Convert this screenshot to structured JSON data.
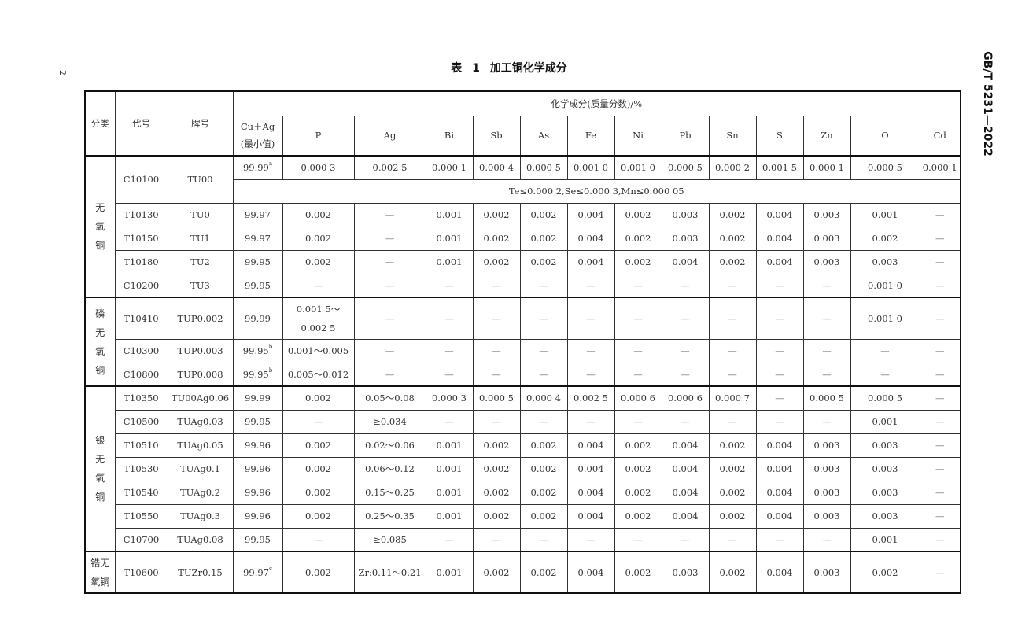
{
  "page_number": "2",
  "standard_code": "GB/T 5231—2022",
  "table_title": "表 1   加工铜化学成分",
  "header": {
    "category": "分类",
    "code": "代号",
    "grade": "牌号",
    "composition": "化学成分(质量分数)/%",
    "elements": [
      "Cu＋Ag (最小值)",
      "P",
      "Ag",
      "Bi",
      "Sb",
      "As",
      "Fe",
      "Ni",
      "Pb",
      "Sn",
      "S",
      "Zn",
      "O",
      "Cd"
    ]
  },
  "groups": [
    {
      "label": "无氧铜",
      "rows": [
        {
          "code": "C10100",
          "grade": "TU00",
          "values": [
            {
              "v": "99.99",
              "sup": "a"
            },
            "0.000 3",
            "0.002 5",
            "0.000 1",
            "0.000 4",
            "0.000 5",
            "0.001 0",
            "0.001 0",
            "0.000 5",
            "0.000 2",
            "0.001 5",
            "0.000 1",
            "0.000 5",
            "0.000 1"
          ],
          "note": "Te≤0.000 2,Se≤0.000 3,Mn≤0.000 05"
        },
        {
          "code": "T10130",
          "grade": "TU0",
          "values": [
            "99.97",
            "0.002",
            "—",
            "0.001",
            "0.002",
            "0.002",
            "0.004",
            "0.002",
            "0.003",
            "0.002",
            "0.004",
            "0.003",
            "0.001",
            "—"
          ]
        },
        {
          "code": "T10150",
          "grade": "TU1",
          "values": [
            "99.97",
            "0.002",
            "—",
            "0.001",
            "0.002",
            "0.002",
            "0.004",
            "0.002",
            "0.003",
            "0.002",
            "0.004",
            "0.003",
            "0.002",
            "—"
          ]
        },
        {
          "code": "T10180",
          "grade": "TU2",
          "values": [
            "99.95",
            "0.002",
            "—",
            "0.001",
            "0.002",
            "0.002",
            "0.004",
            "0.002",
            "0.004",
            "0.002",
            "0.004",
            "0.003",
            "0.003",
            "—"
          ]
        },
        {
          "code": "C10200",
          "grade": "TU3",
          "values": [
            "99.95",
            "—",
            "—",
            "—",
            "—",
            "—",
            "—",
            "—",
            "—",
            "—",
            "—",
            "—",
            "0.001 0",
            "—"
          ]
        }
      ]
    },
    {
      "label": "磷无氧铜",
      "rows": [
        {
          "code": "T10410",
          "grade": "TUP0.002",
          "tall": true,
          "values": [
            "99.99",
            "0.001 5～ 0.002 5",
            "—",
            "—",
            "—",
            "—",
            "—",
            "—",
            "—",
            "—",
            "—",
            "—",
            "0.001 0",
            "—"
          ]
        },
        {
          "code": "C10300",
          "grade": "TUP0.003",
          "values": [
            {
              "v": "99.95",
              "sup": "b"
            },
            "0.001～0.005",
            "—",
            "—",
            "—",
            "—",
            "—",
            "—",
            "—",
            "—",
            "—",
            "—",
            "—",
            "—"
          ]
        },
        {
          "code": "C10800",
          "grade": "TUP0.008",
          "values": [
            {
              "v": "99.95",
              "sup": "b"
            },
            "0.005～0.012",
            "—",
            "—",
            "—",
            "—",
            "—",
            "—",
            "—",
            "—",
            "—",
            "—",
            "—",
            "—"
          ]
        }
      ]
    },
    {
      "label": "银无氧铜",
      "rows": [
        {
          "code": "T10350",
          "grade": "TU00Ag0.06",
          "values": [
            "99.99",
            "0.002",
            "0.05～0.08",
            "0.000 3",
            "0.000 5",
            "0.000 4",
            "0.002 5",
            "0.000 6",
            "0.000 6",
            "0.000 7",
            "—",
            "0.000 5",
            "0.000 5",
            "—"
          ]
        },
        {
          "code": "C10500",
          "grade": "TUAg0.03",
          "values": [
            "99.95",
            "—",
            "≥0.034",
            "—",
            "—",
            "—",
            "—",
            "—",
            "—",
            "—",
            "—",
            "—",
            "0.001",
            "—"
          ]
        },
        {
          "code": "T10510",
          "grade": "TUAg0.05",
          "values": [
            "99.96",
            "0.002",
            "0.02～0.06",
            "0.001",
            "0.002",
            "0.002",
            "0.004",
            "0.002",
            "0.004",
            "0.002",
            "0.004",
            "0.003",
            "0.003",
            "—"
          ]
        },
        {
          "code": "T10530",
          "grade": "TUAg0.1",
          "values": [
            "99.96",
            "0.002",
            "0.06～0.12",
            "0.001",
            "0.002",
            "0.002",
            "0.004",
            "0.002",
            "0.004",
            "0.002",
            "0.004",
            "0.003",
            "0.003",
            "—"
          ]
        },
        {
          "code": "T10540",
          "grade": "TUAg0.2",
          "values": [
            "99.96",
            "0.002",
            "0.15～0.25",
            "0.001",
            "0.002",
            "0.002",
            "0.004",
            "0.002",
            "0.004",
            "0.002",
            "0.004",
            "0.003",
            "0.003",
            "—"
          ]
        },
        {
          "code": "T10550",
          "grade": "TUAg0.3",
          "values": [
            "99.96",
            "0.002",
            "0.25～0.35",
            "0.001",
            "0.002",
            "0.002",
            "0.004",
            "0.002",
            "0.004",
            "0.002",
            "0.004",
            "0.003",
            "0.003",
            "—"
          ]
        },
        {
          "code": "C10700",
          "grade": "TUAg0.08",
          "values": [
            "99.95",
            "—",
            "≥0.085",
            "—",
            "—",
            "—",
            "—",
            "—",
            "—",
            "—",
            "—",
            "—",
            "0.001",
            "—"
          ]
        }
      ]
    },
    {
      "label": "锆无氧铜",
      "rows": [
        {
          "code": "T10600",
          "grade": "TUZr0.15",
          "tall": true,
          "values": [
            {
              "v": "99.97",
              "sup": "c"
            },
            "0.002",
            "Zr:0.11～0.21",
            "0.001",
            "0.002",
            "0.002",
            "0.004",
            "0.002",
            "0.003",
            "0.002",
            "0.004",
            "0.003",
            "0.002",
            "—"
          ]
        }
      ]
    }
  ]
}
